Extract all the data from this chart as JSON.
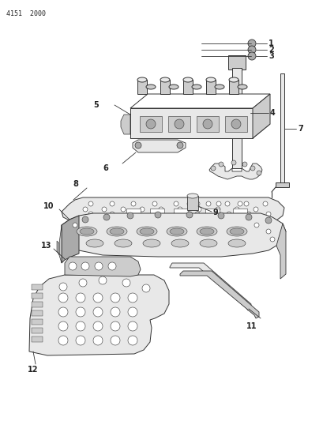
{
  "header_text": "4151  2000",
  "bg_color": "#ffffff",
  "line_color": "#333333",
  "label_color": "#222222",
  "fig_width": 4.1,
  "fig_height": 5.33,
  "dpi": 100
}
